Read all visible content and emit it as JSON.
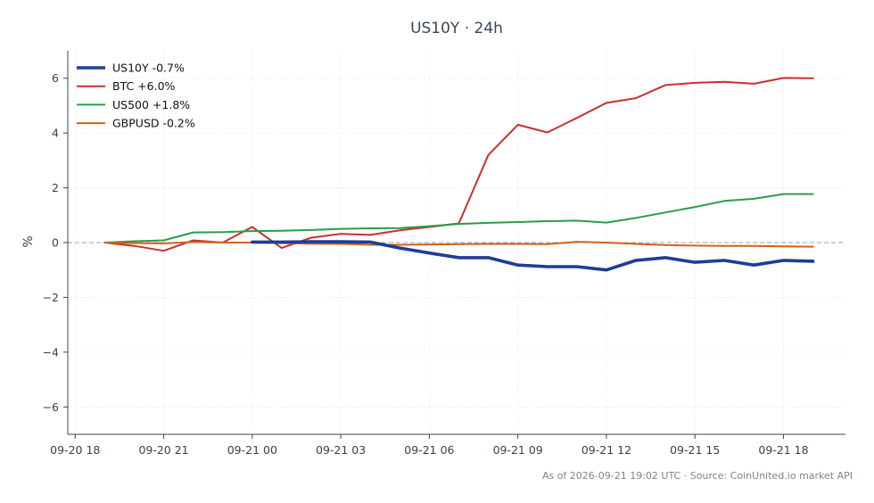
{
  "chart_data": {
    "type": "line",
    "title": "US10Y · 24h",
    "xlabel": "",
    "ylabel": "%",
    "x_tick_labels": [
      "09-20 18",
      "09-20 21",
      "09-21 00",
      "09-21 03",
      "09-21 06",
      "09-21 09",
      "09-21 12",
      "09-21 15",
      "09-21 18"
    ],
    "x_ticks_hours": [
      0,
      3,
      6,
      9,
      12,
      15,
      18,
      21,
      24
    ],
    "xlim_hours": [
      -0.25,
      26.1
    ],
    "ylim": [
      -7,
      7
    ],
    "y_ticks": [
      -6,
      -4,
      -2,
      0,
      2,
      4,
      6
    ],
    "grid": true,
    "zero_line": true,
    "legend_position": "top-left",
    "colors": {
      "US10Y": "#1f3c99",
      "BTC": "#c9302c",
      "US500": "#2a9d4a",
      "GBPUSD": "#d2601a"
    },
    "series": [
      {
        "name": "US10Y -0.7%",
        "color": "#1f3c99",
        "width": 3.6,
        "x": [
          6,
          7,
          8,
          9,
          10,
          11,
          12,
          13,
          14,
          15,
          16,
          17,
          18,
          19,
          20,
          21,
          22,
          23,
          24,
          25
        ],
        "y": [
          0.02,
          0.02,
          0.03,
          0.03,
          0.02,
          -0.2,
          -0.38,
          -0.55,
          -0.55,
          -0.82,
          -0.88,
          -0.88,
          -1.0,
          -0.65,
          -0.55,
          -0.72,
          -0.65,
          -0.82,
          -0.65,
          -0.68
        ]
      },
      {
        "name": "BTC +6.0%",
        "color": "#c9302c",
        "width": 2.0,
        "x": [
          1,
          2,
          3,
          4,
          5,
          6,
          7,
          8,
          9,
          10,
          11,
          12,
          13,
          14,
          15,
          16,
          17,
          18,
          19,
          20,
          21,
          22,
          23,
          24,
          25
        ],
        "y": [
          0.0,
          -0.12,
          -0.3,
          0.08,
          0.0,
          0.57,
          -0.2,
          0.18,
          0.32,
          0.28,
          0.45,
          0.57,
          0.7,
          3.2,
          4.3,
          4.02,
          4.55,
          5.1,
          5.27,
          5.75,
          5.83,
          5.87,
          5.8,
          6.01,
          6.0
        ]
      },
      {
        "name": "US500 +1.8%",
        "color": "#2a9d4a",
        "width": 2.0,
        "x": [
          1,
          2,
          3,
          4,
          5,
          6,
          7,
          8,
          9,
          10,
          11,
          12,
          13,
          14,
          15,
          16,
          17,
          18,
          19,
          20,
          21,
          22,
          23,
          24,
          25
        ],
        "y": [
          0.0,
          0.05,
          0.08,
          0.37,
          0.38,
          0.42,
          0.43,
          0.46,
          0.5,
          0.52,
          0.53,
          0.6,
          0.68,
          0.72,
          0.75,
          0.78,
          0.8,
          0.73,
          0.9,
          1.1,
          1.3,
          1.52,
          1.6,
          1.77,
          1.77
        ]
      },
      {
        "name": "GBPUSD -0.2%",
        "color": "#d2601a",
        "width": 2.0,
        "x": [
          1,
          2,
          3,
          4,
          5,
          6,
          7,
          8,
          9,
          10,
          11,
          12,
          13,
          14,
          15,
          16,
          17,
          18,
          19,
          20,
          21,
          22,
          23,
          24,
          25
        ],
        "y": [
          0.0,
          -0.02,
          -0.03,
          0.02,
          0.0,
          0.0,
          -0.02,
          -0.04,
          -0.05,
          -0.08,
          -0.08,
          -0.07,
          -0.06,
          -0.05,
          -0.05,
          -0.06,
          0.03,
          0.0,
          -0.05,
          -0.09,
          -0.11,
          -0.12,
          -0.12,
          -0.14,
          -0.15
        ]
      }
    ]
  },
  "footnote": "As of 2026-09-21 19:02 UTC · Source: CoinUnited.io market API"
}
